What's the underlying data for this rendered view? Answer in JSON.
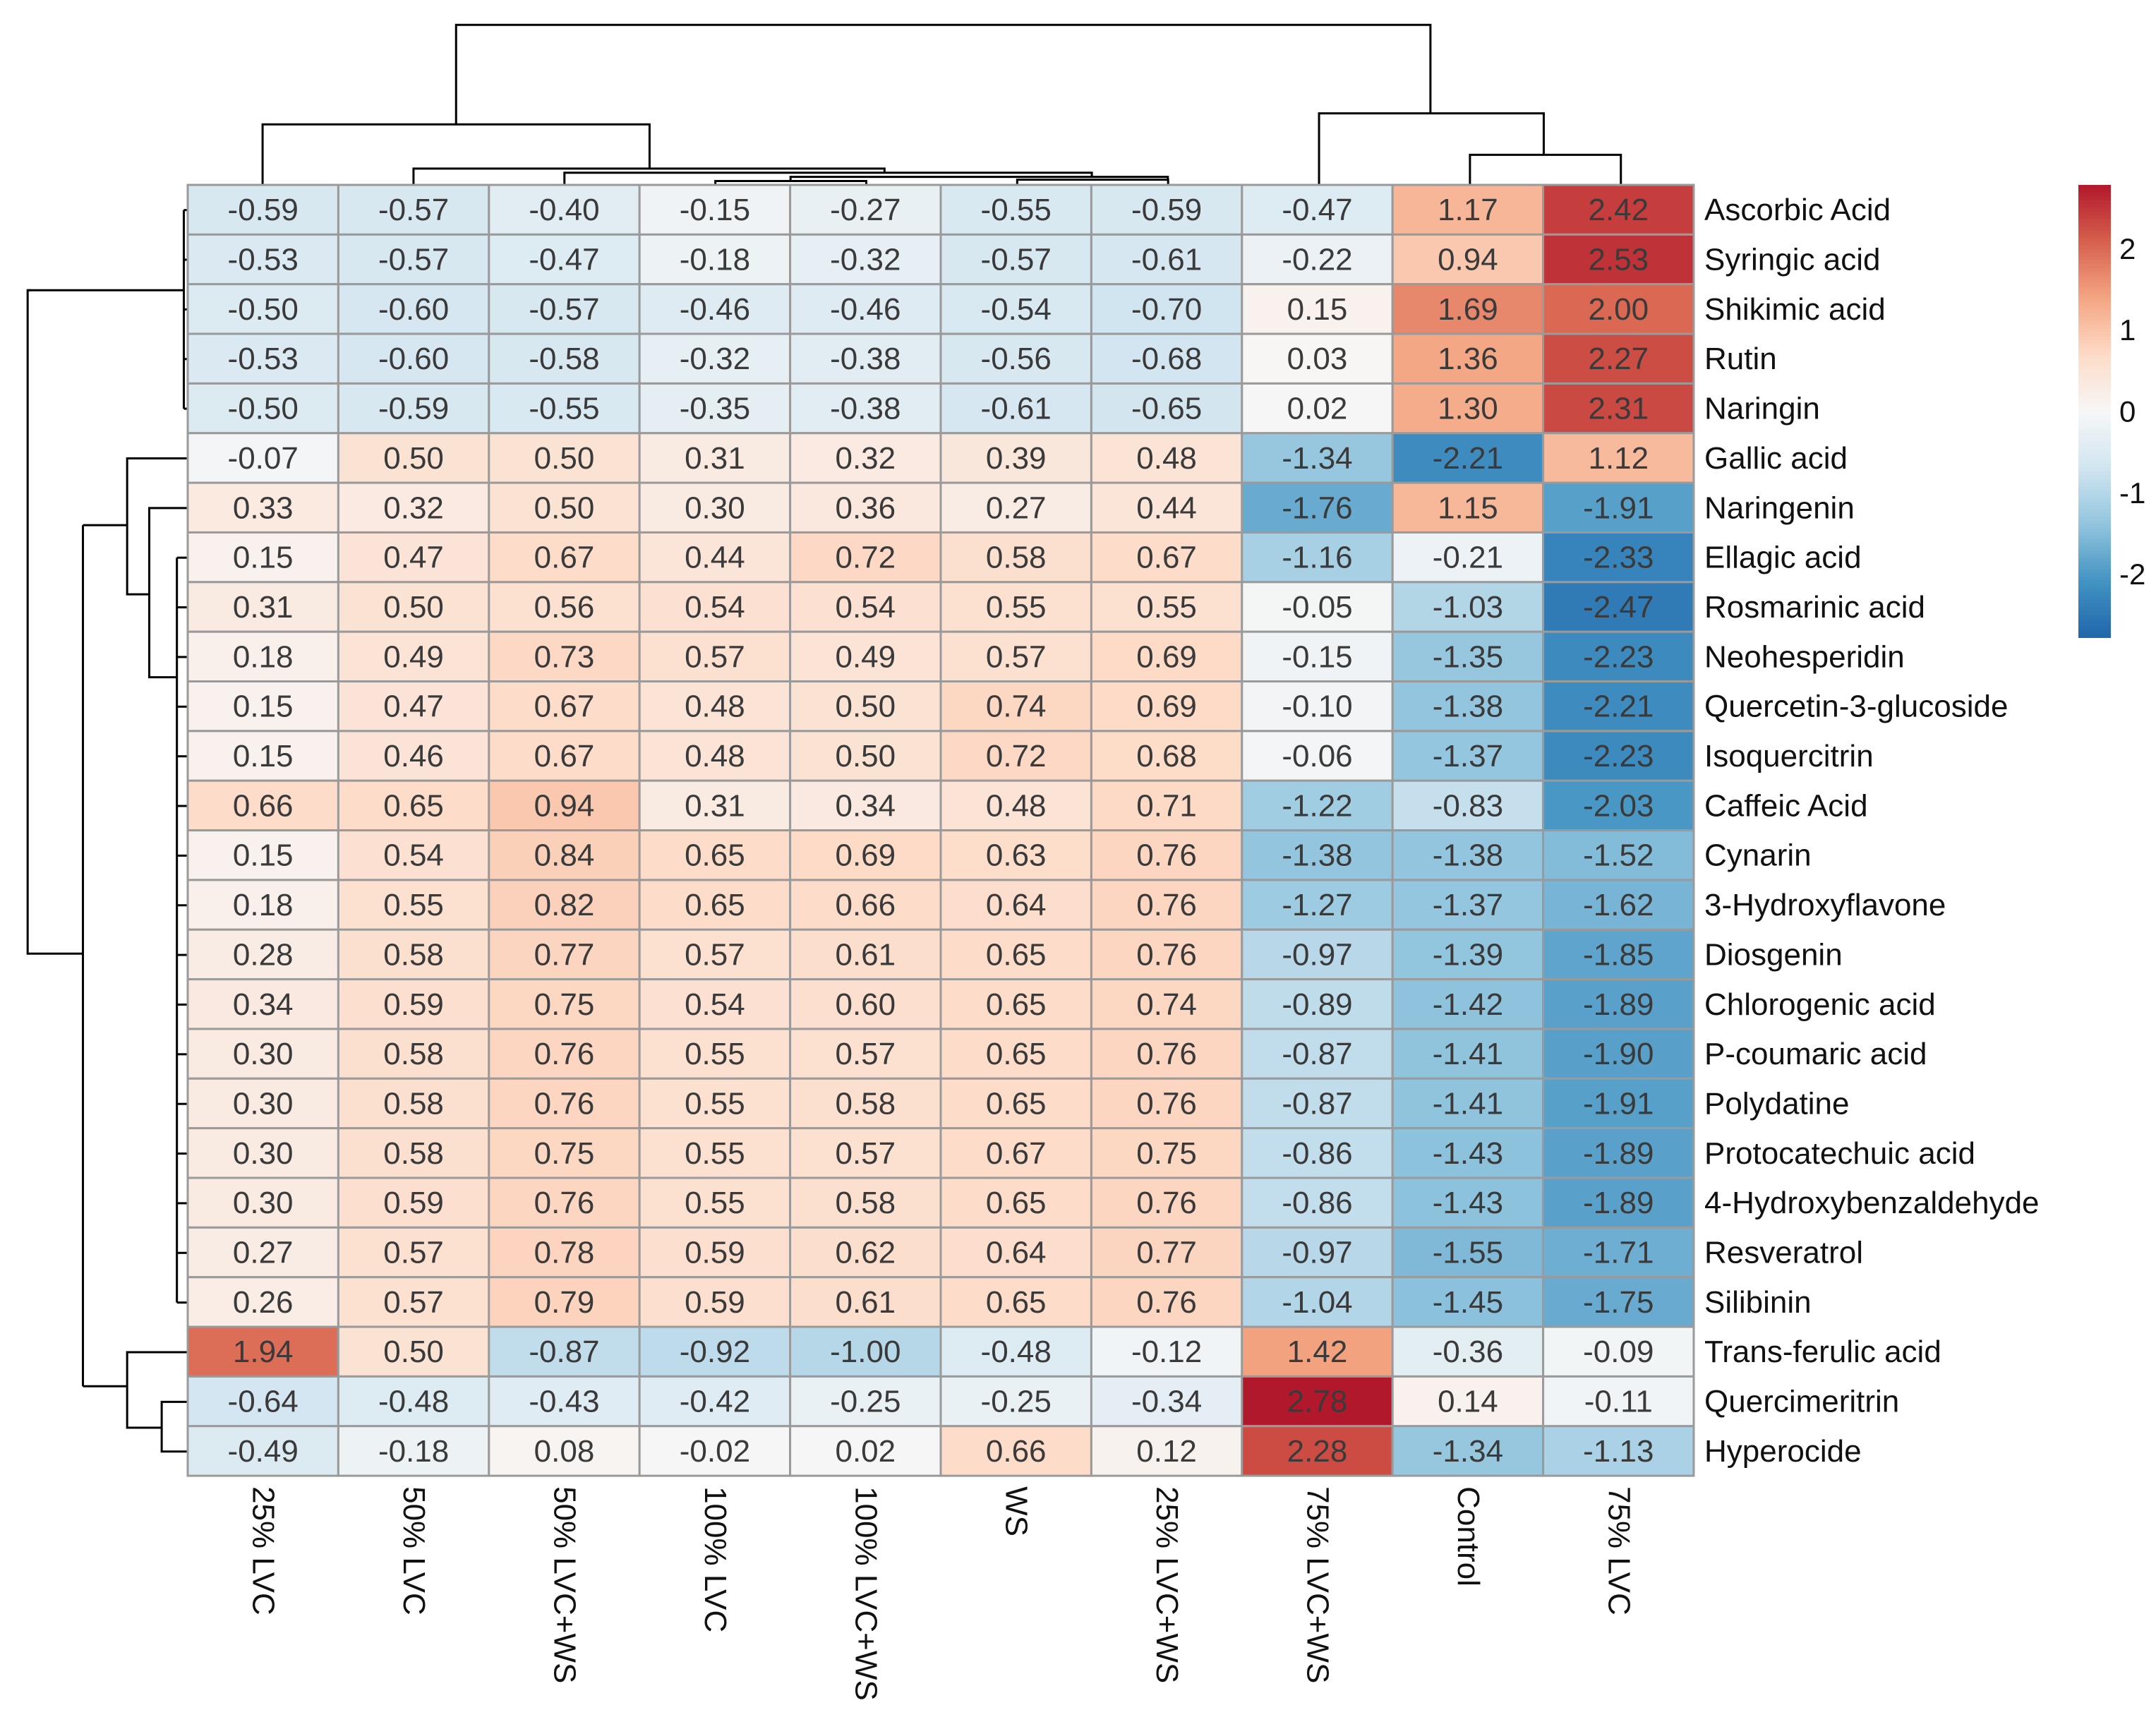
{
  "chart_data": {
    "type": "heatmap",
    "title": "",
    "columns": [
      "25% LVC",
      "50% LVC",
      "50% LVC+WS",
      "100% LVC",
      "100% LVC+WS",
      "WS",
      "25% LVC+WS",
      "75% LVC+WS",
      "Control",
      "75% LVC"
    ],
    "rows": [
      "Ascorbic Acid",
      "Syringic acid",
      "Shikimic acid",
      "Rutin",
      "Naringin",
      "Gallic acid",
      "Naringenin",
      "Ellagic acid",
      "Rosmarinic acid",
      "Neohesperidin",
      "Quercetin-3-glucoside",
      "Isoquercitrin",
      "Caffeic Acid",
      "Cynarin",
      "3-Hydroxyflavone",
      "Diosgenin",
      "Chlorogenic acid",
      "P-coumaric acid",
      "Polydatine",
      "Protocatechuic acid",
      "4-Hydroxybenzaldehyde",
      "Resveratrol",
      "Silibinin",
      "Trans-ferulic acid",
      "Quercimeritrin",
      "Hyperocide"
    ],
    "values": [
      [
        -0.59,
        -0.57,
        -0.4,
        -0.15,
        -0.27,
        -0.55,
        -0.59,
        -0.47,
        1.17,
        2.42
      ],
      [
        -0.53,
        -0.57,
        -0.47,
        -0.18,
        -0.32,
        -0.57,
        -0.61,
        -0.22,
        0.94,
        2.53
      ],
      [
        -0.5,
        -0.6,
        -0.57,
        -0.46,
        -0.46,
        -0.54,
        -0.7,
        0.15,
        1.69,
        2.0
      ],
      [
        -0.53,
        -0.6,
        -0.58,
        -0.32,
        -0.38,
        -0.56,
        -0.68,
        0.03,
        1.36,
        2.27
      ],
      [
        -0.5,
        -0.59,
        -0.55,
        -0.35,
        -0.38,
        -0.61,
        -0.65,
        0.02,
        1.3,
        2.31
      ],
      [
        -0.07,
        0.5,
        0.5,
        0.31,
        0.32,
        0.39,
        0.48,
        -1.34,
        -2.21,
        1.12
      ],
      [
        0.33,
        0.32,
        0.5,
        0.3,
        0.36,
        0.27,
        0.44,
        -1.76,
        1.15,
        -1.91
      ],
      [
        0.15,
        0.47,
        0.67,
        0.44,
        0.72,
        0.58,
        0.67,
        -1.16,
        -0.21,
        -2.33
      ],
      [
        0.31,
        0.5,
        0.56,
        0.54,
        0.54,
        0.55,
        0.55,
        -0.05,
        -1.03,
        -2.47
      ],
      [
        0.18,
        0.49,
        0.73,
        0.57,
        0.49,
        0.57,
        0.69,
        -0.15,
        -1.35,
        -2.23
      ],
      [
        0.15,
        0.47,
        0.67,
        0.48,
        0.5,
        0.74,
        0.69,
        -0.1,
        -1.38,
        -2.21
      ],
      [
        0.15,
        0.46,
        0.67,
        0.48,
        0.5,
        0.72,
        0.68,
        -0.06,
        -1.37,
        -2.23
      ],
      [
        0.66,
        0.65,
        0.94,
        0.31,
        0.34,
        0.48,
        0.71,
        -1.22,
        -0.83,
        -2.03
      ],
      [
        0.15,
        0.54,
        0.84,
        0.65,
        0.69,
        0.63,
        0.76,
        -1.38,
        -1.38,
        -1.52
      ],
      [
        0.18,
        0.55,
        0.82,
        0.65,
        0.66,
        0.64,
        0.76,
        -1.27,
        -1.37,
        -1.62
      ],
      [
        0.28,
        0.58,
        0.77,
        0.57,
        0.61,
        0.65,
        0.76,
        -0.97,
        -1.39,
        -1.85
      ],
      [
        0.34,
        0.59,
        0.75,
        0.54,
        0.6,
        0.65,
        0.74,
        -0.89,
        -1.42,
        -1.89
      ],
      [
        0.3,
        0.58,
        0.76,
        0.55,
        0.57,
        0.65,
        0.76,
        -0.87,
        -1.41,
        -1.9
      ],
      [
        0.3,
        0.58,
        0.76,
        0.55,
        0.58,
        0.65,
        0.76,
        -0.87,
        -1.41,
        -1.91
      ],
      [
        0.3,
        0.58,
        0.75,
        0.55,
        0.57,
        0.67,
        0.75,
        -0.86,
        -1.43,
        -1.89
      ],
      [
        0.3,
        0.59,
        0.76,
        0.55,
        0.58,
        0.65,
        0.76,
        -0.86,
        -1.43,
        -1.89
      ],
      [
        0.27,
        0.57,
        0.78,
        0.59,
        0.62,
        0.64,
        0.77,
        -0.97,
        -1.55,
        -1.71
      ],
      [
        0.26,
        0.57,
        0.79,
        0.59,
        0.61,
        0.65,
        0.76,
        -1.04,
        -1.45,
        -1.75
      ],
      [
        1.94,
        0.5,
        -0.87,
        -0.92,
        -1.0,
        -0.48,
        -0.12,
        1.42,
        -0.36,
        -0.09
      ],
      [
        -0.64,
        -0.48,
        -0.43,
        -0.42,
        -0.25,
        -0.25,
        -0.34,
        2.78,
        0.14,
        -0.11
      ],
      [
        -0.49,
        -0.18,
        0.08,
        -0.02,
        0.02,
        0.66,
        0.12,
        2.28,
        -1.34,
        -1.13
      ]
    ],
    "legend": {
      "ticks": [
        2,
        1,
        0,
        -1,
        -2
      ],
      "range": [
        -2.78,
        2.78
      ],
      "placement": "right"
    },
    "colors": [
      "#2166ac",
      "#4393c3",
      "#92c5de",
      "#d1e5f0",
      "#f7f7f7",
      "#fddbc7",
      "#f4a582",
      "#d6604d",
      "#b2182b"
    ],
    "row_dendrogram": true,
    "column_dendrogram": true
  }
}
